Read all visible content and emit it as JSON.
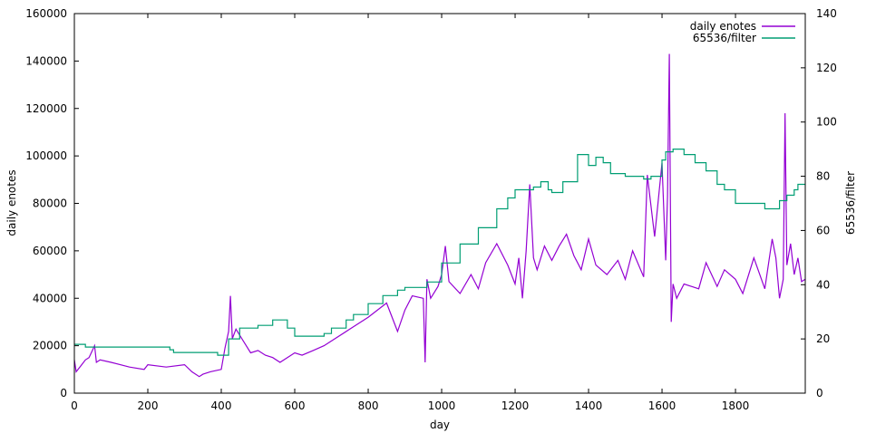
{
  "chart_data": {
    "type": "line",
    "xlabel": "day",
    "ylabel": "daily enotes",
    "y2label": "65536/filter",
    "xlim": [
      0,
      1990
    ],
    "ylim": [
      0,
      160000
    ],
    "y2lim": [
      0,
      140
    ],
    "xticks": [
      0,
      200,
      400,
      600,
      800,
      1000,
      1200,
      1400,
      1600,
      1800
    ],
    "yticks": [
      0,
      20000,
      40000,
      60000,
      80000,
      100000,
      120000,
      140000,
      160000
    ],
    "y2ticks": [
      0,
      20,
      40,
      60,
      80,
      100,
      120,
      140
    ],
    "legend": "top-right",
    "series": [
      {
        "name": "daily enotes",
        "axis": "left",
        "color": "#9400d3",
        "x": [
          0,
          5,
          10,
          20,
          30,
          40,
          55,
          60,
          70,
          100,
          150,
          190,
          200,
          250,
          300,
          320,
          340,
          350,
          370,
          400,
          410,
          420,
          425,
          430,
          440,
          460,
          480,
          500,
          520,
          540,
          560,
          600,
          620,
          650,
          680,
          700,
          750,
          800,
          850,
          880,
          900,
          920,
          950,
          955,
          960,
          970,
          990,
          1000,
          1010,
          1020,
          1050,
          1080,
          1100,
          1120,
          1150,
          1180,
          1200,
          1210,
          1220,
          1230,
          1240,
          1250,
          1260,
          1280,
          1300,
          1320,
          1340,
          1360,
          1380,
          1400,
          1420,
          1450,
          1480,
          1500,
          1520,
          1550,
          1560,
          1580,
          1600,
          1610,
          1615,
          1620,
          1625,
          1630,
          1640,
          1660,
          1700,
          1720,
          1750,
          1770,
          1800,
          1820,
          1850,
          1880,
          1900,
          1910,
          1920,
          1930,
          1935,
          1940,
          1950,
          1960,
          1970,
          1980,
          1990
        ],
        "y": [
          14000,
          9000,
          10000,
          12000,
          14000,
          15000,
          20000,
          13000,
          14000,
          13000,
          11000,
          10000,
          12000,
          11000,
          12000,
          9000,
          7000,
          8000,
          9000,
          10000,
          19000,
          26000,
          41000,
          23000,
          27000,
          22000,
          17000,
          18000,
          16000,
          15000,
          13000,
          17000,
          16000,
          18000,
          20000,
          22000,
          27000,
          32000,
          38000,
          26000,
          35000,
          41000,
          40000,
          13000,
          48000,
          40000,
          45000,
          50000,
          62000,
          47000,
          42000,
          50000,
          44000,
          55000,
          63000,
          54000,
          46000,
          57000,
          40000,
          60000,
          88000,
          57000,
          52000,
          62000,
          56000,
          62000,
          67000,
          58000,
          52000,
          65000,
          54000,
          50000,
          56000,
          48000,
          60000,
          49000,
          92000,
          66000,
          97000,
          56000,
          83000,
          143000,
          30000,
          46000,
          40000,
          46000,
          44000,
          55000,
          45000,
          52000,
          48000,
          42000,
          57000,
          44000,
          65000,
          57000,
          40000,
          48000,
          118000,
          54000,
          63000,
          50000,
          57000,
          47000,
          48000
        ]
      },
      {
        "name": "65536/filter",
        "axis": "right",
        "color": "#009e73",
        "x": [
          0,
          20,
          30,
          200,
          260,
          270,
          390,
          400,
          420,
          450,
          500,
          540,
          580,
          600,
          620,
          680,
          700,
          740,
          760,
          800,
          840,
          880,
          900,
          930,
          960,
          1000,
          1050,
          1100,
          1150,
          1180,
          1200,
          1240,
          1250,
          1270,
          1290,
          1300,
          1330,
          1370,
          1400,
          1420,
          1440,
          1460,
          1500,
          1530,
          1550,
          1570,
          1600,
          1610,
          1630,
          1660,
          1690,
          1720,
          1750,
          1770,
          1800,
          1850,
          1880,
          1890,
          1900,
          1920,
          1940,
          1960,
          1970,
          1990
        ],
        "y": [
          18,
          18,
          17,
          17,
          16,
          15,
          14,
          14,
          20,
          24,
          25,
          27,
          24,
          21,
          21,
          22,
          24,
          27,
          29,
          33,
          36,
          38,
          39,
          39,
          41,
          48,
          55,
          61,
          68,
          72,
          75,
          75,
          76,
          78,
          75,
          74,
          78,
          88,
          84,
          87,
          85,
          81,
          80,
          80,
          79,
          80,
          86,
          89,
          90,
          88,
          85,
          82,
          77,
          75,
          70,
          70,
          68,
          68,
          68,
          71,
          73,
          75,
          77,
          77
        ]
      }
    ]
  }
}
